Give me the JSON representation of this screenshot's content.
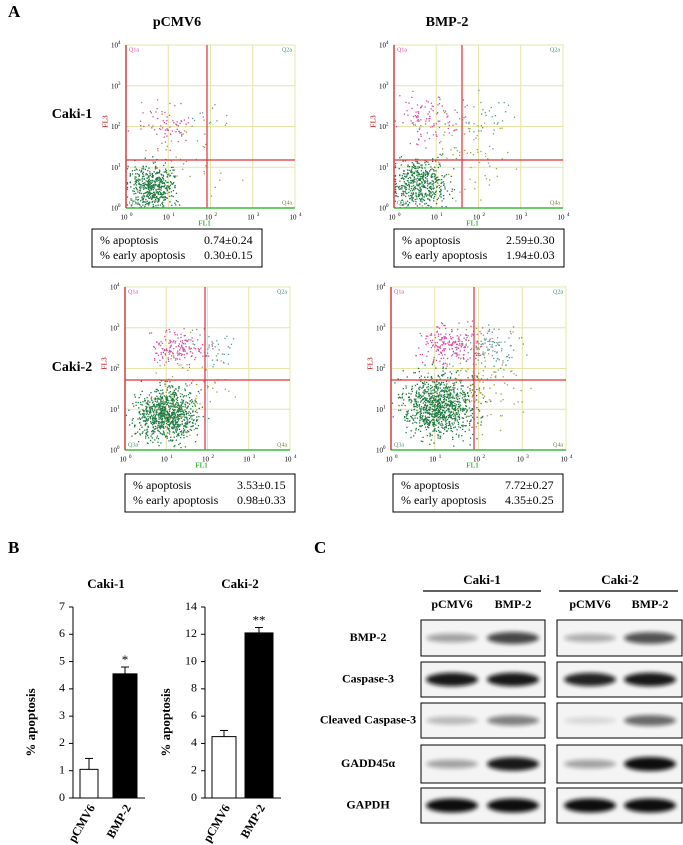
{
  "panel_a": {
    "label": "A",
    "columns": [
      "pCMV6",
      "BMP-2"
    ],
    "rows": [
      "Caki-1",
      "Caki-2"
    ],
    "x_axis_label": "FL1",
    "y_axis_label": "FL3",
    "axis_ticks": [
      {
        "base": "10",
        "exp": "0"
      },
      {
        "base": "10",
        "exp": "1"
      },
      {
        "base": "10",
        "exp": "2"
      },
      {
        "base": "10",
        "exp": "3"
      },
      {
        "base": "10",
        "exp": "4"
      }
    ],
    "quadrants": [
      "Q1a",
      "Q2a",
      "Q3a",
      "Q4a"
    ],
    "stat_names": [
      "% apoptosis",
      "% early apoptosis"
    ],
    "plots": [
      {
        "apoptosis": "0.74±0.24",
        "early_apoptosis": "0.30±0.15"
      },
      {
        "apoptosis": "2.59±0.30",
        "early_apoptosis": "1.94±0.03"
      },
      {
        "apoptosis": "3.53±0.15",
        "early_apoptosis": "0.98±0.33"
      },
      {
        "apoptosis": "7.72±0.27",
        "early_apoptosis": "4.35±0.25"
      }
    ]
  },
  "panel_b": {
    "label": "B"
  },
  "chart_data": [
    {
      "type": "bar",
      "title": "Caki-1",
      "y_label": "% apoptosis",
      "categories": [
        "pCMV6",
        "BMP-2"
      ],
      "values": [
        1.05,
        4.55
      ],
      "errors": [
        0.4,
        0.25
      ],
      "colors": [
        "#ffffff",
        "#000000"
      ],
      "significance": "*",
      "ylim": [
        0,
        7
      ],
      "yticks": [
        0,
        1,
        2,
        3,
        4,
        5,
        6,
        7
      ]
    },
    {
      "type": "bar",
      "title": "Caki-2",
      "y_label": "% apoptosis",
      "categories": [
        "pCMV6",
        "BMP-2"
      ],
      "values": [
        4.5,
        12.1
      ],
      "errors": [
        0.45,
        0.4
      ],
      "colors": [
        "#ffffff",
        "#000000"
      ],
      "significance": "**",
      "ylim": [
        0,
        14
      ],
      "yticks": [
        0,
        2,
        4,
        6,
        8,
        10,
        12,
        14
      ]
    }
  ],
  "panel_c": {
    "label": "C",
    "cell_lines": [
      "Caki-1",
      "Caki-2"
    ],
    "lanes": [
      "pCMV6",
      "BMP-2"
    ],
    "proteins": [
      "BMP-2",
      "Caspase-3",
      "Cleaved Caspase-3",
      "GADD45α",
      "GAPDH"
    ]
  }
}
